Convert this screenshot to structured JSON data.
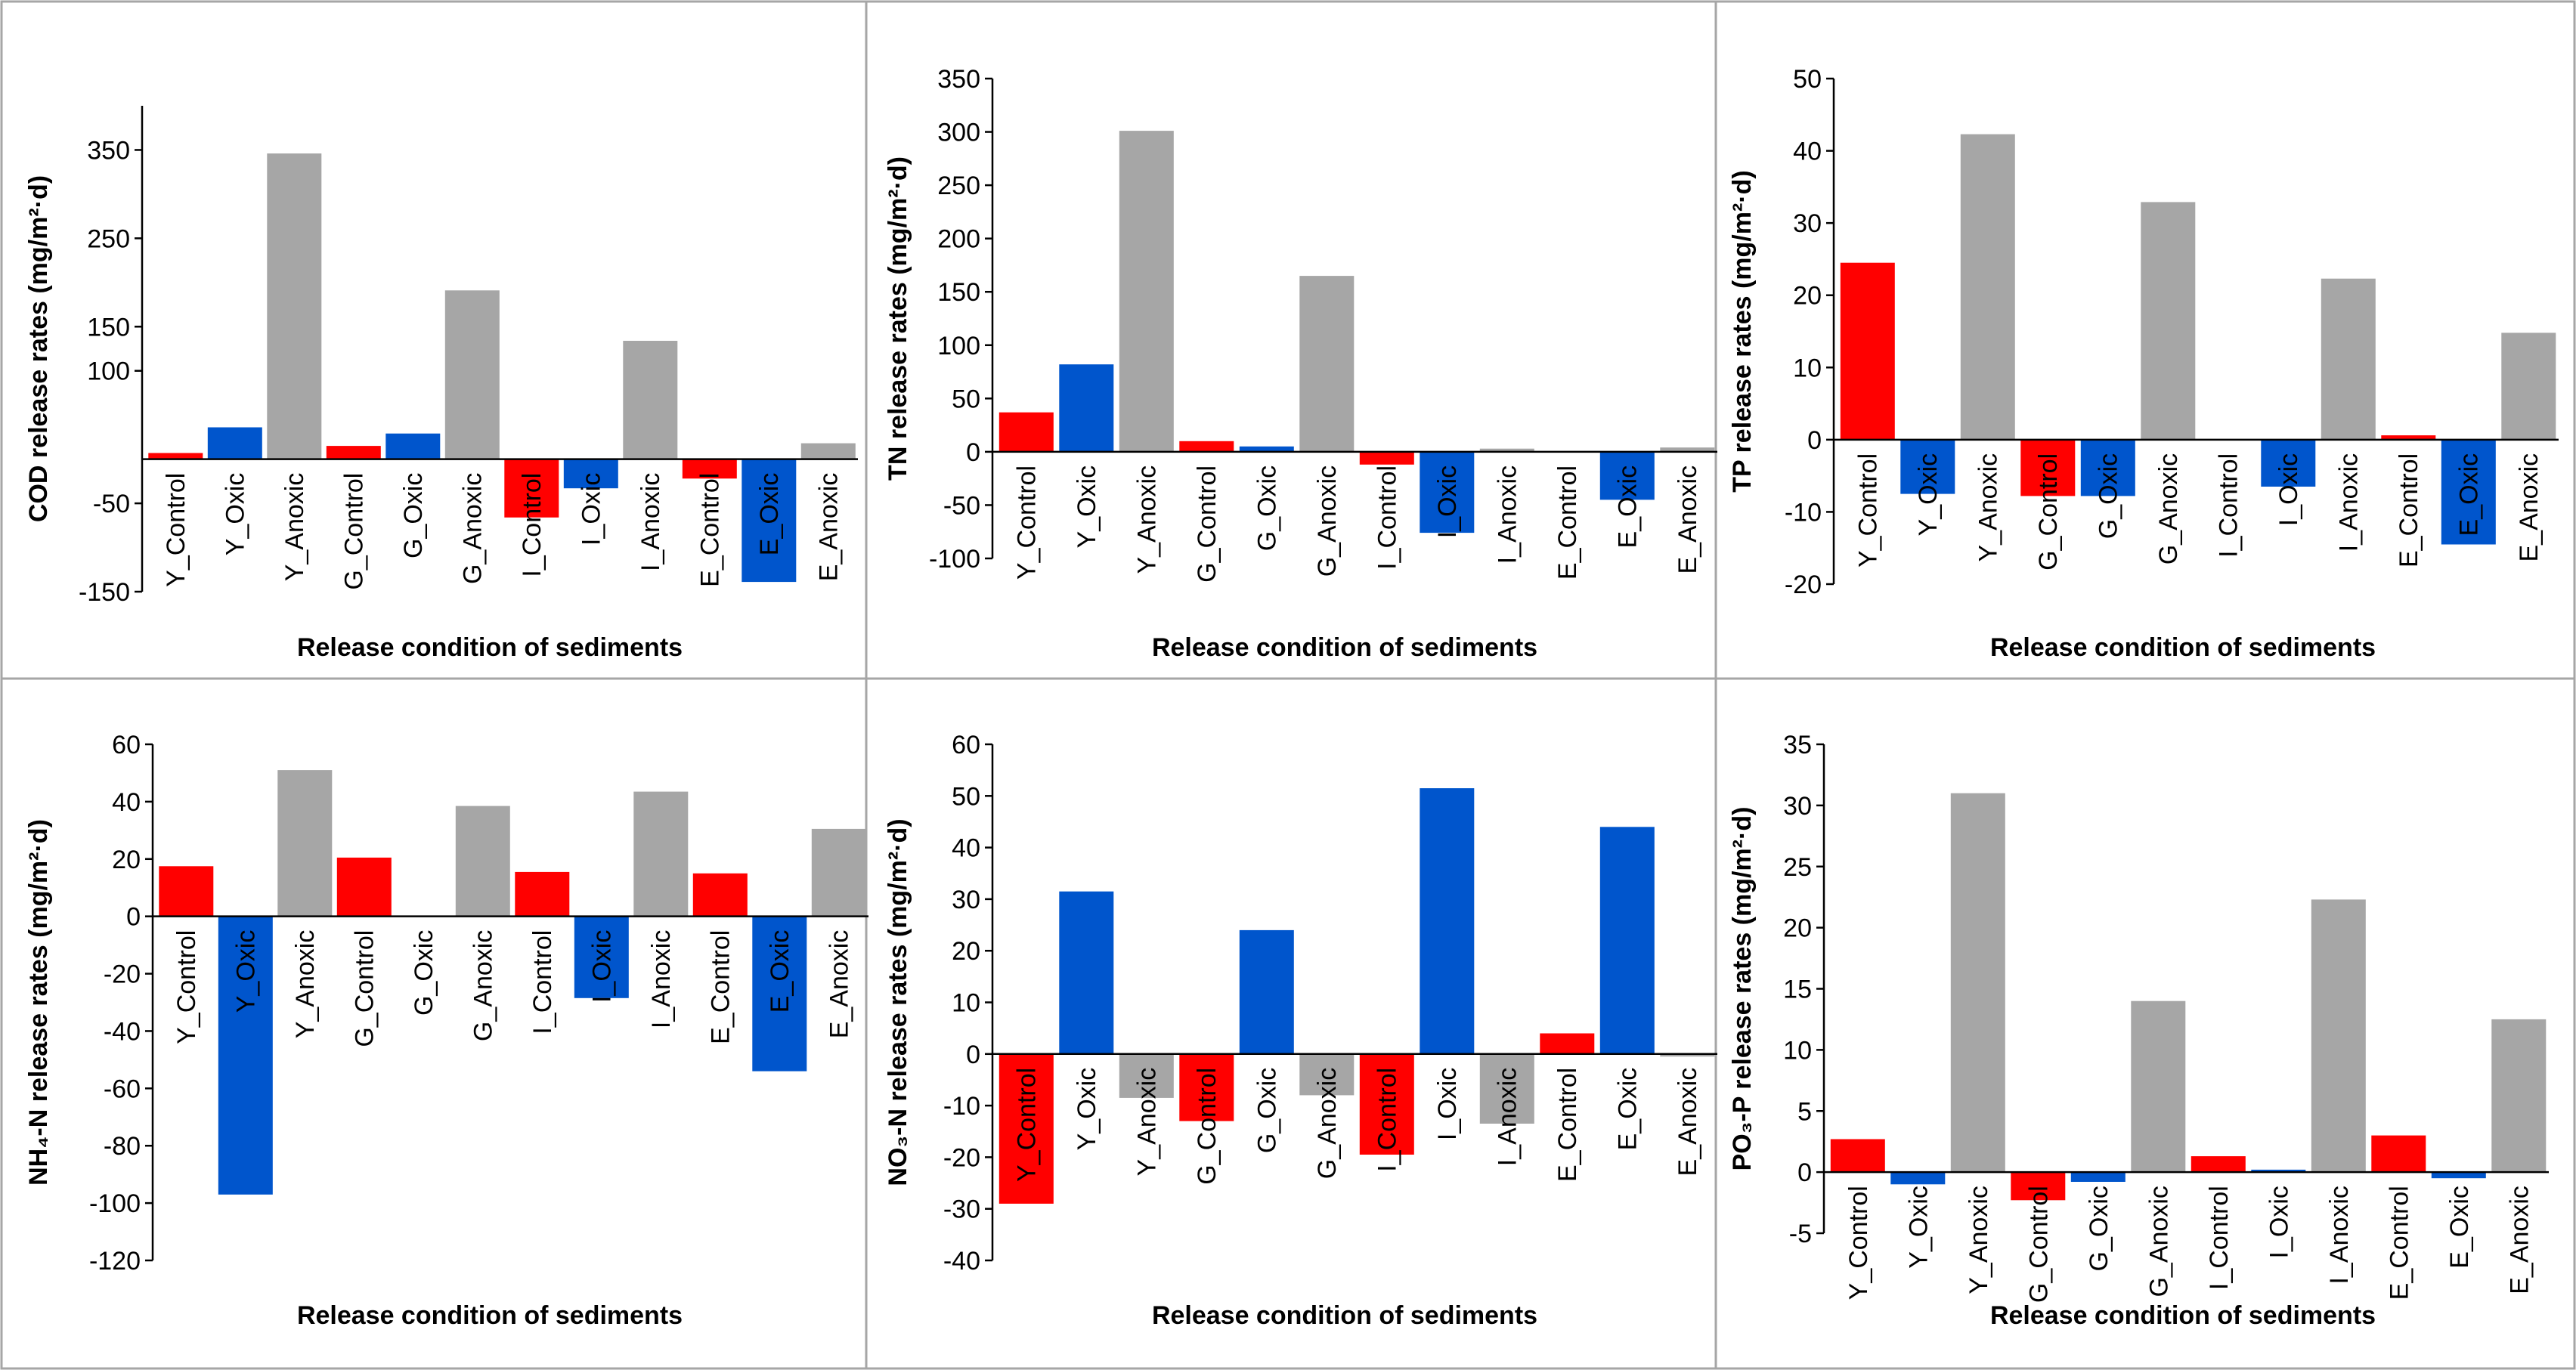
{
  "colors": {
    "Control": "#ff0000",
    "Oxic": "#0055cc",
    "Anoxic": "#a6a6a6",
    "panel_border": "#a6a6a6",
    "axis": "#000000"
  },
  "chart_data": [
    {
      "type": "bar",
      "ylabel": "COD release rates (mg/m²·d)",
      "xlabel": "Release condition of sediments",
      "categories": [
        "Y_Control",
        "Y_Oxic",
        "Y_Anoxic",
        "G_Control",
        "G_Oxic",
        "G_Anoxic",
        "I_Control",
        "I_Oxic",
        "I_Anoxic",
        "E_Control",
        "E_Oxic",
        "E_Anoxic"
      ],
      "values": [
        7,
        36,
        346,
        15,
        29,
        191,
        -66,
        -33,
        134,
        -22,
        -139,
        18
      ],
      "ylim": [
        -150,
        400
      ],
      "ticks": [
        -150,
        -50,
        100,
        150,
        250,
        350
      ],
      "legend": "none",
      "grid": false
    },
    {
      "type": "bar",
      "ylabel": "TN release rates (mg/m²·d)",
      "xlabel": "Release condition of sediments",
      "categories": [
        "Y_Control",
        "Y_Oxic",
        "Y_Anoxic",
        "G_Control",
        "G_Oxic",
        "G_Anoxic",
        "I_Control",
        "I_Oxic",
        "I_Anoxic",
        "E_Control",
        "E_Oxic",
        "E_Anoxic"
      ],
      "values": [
        37,
        82,
        301,
        10,
        5,
        165,
        -12,
        -76,
        3,
        0,
        -45,
        4
      ],
      "ylim": [
        -100,
        350
      ],
      "ticks": [
        -100,
        -50,
        0,
        50,
        100,
        150,
        200,
        250,
        300,
        350
      ],
      "legend": "none",
      "grid": false
    },
    {
      "type": "bar",
      "ylabel": "TP release rates (mg/m²·d)",
      "xlabel": "Release condition of sediments",
      "categories": [
        "Y_Control",
        "Y_Oxic",
        "Y_Anoxic",
        "G_Control",
        "G_Oxic",
        "G_Anoxic",
        "I_Control",
        "I_Oxic",
        "I_Anoxic",
        "E_Control",
        "E_Oxic",
        "E_Anoxic"
      ],
      "values": [
        24.5,
        -7.5,
        42.3,
        -7.8,
        -7.8,
        32.9,
        0,
        -6.5,
        22.3,
        0.6,
        -14.5,
        14.8
      ],
      "ylim": [
        -20,
        50
      ],
      "ticks": [
        -20,
        -10,
        0,
        10,
        20,
        30,
        40,
        50
      ],
      "legend": "none",
      "grid": false
    },
    {
      "type": "bar",
      "ylabel": "NH₄-N release rates (mg/m²·d)",
      "xlabel": "Release condition of sediments",
      "categories": [
        "Y_Control",
        "Y_Oxic",
        "Y_Anoxic",
        "G_Control",
        "G_Oxic",
        "G_Anoxic",
        "I_Control",
        "I_Oxic",
        "I_Anoxic",
        "E_Control",
        "E_Oxic",
        "E_Anoxic"
      ],
      "values": [
        17.5,
        -97,
        51,
        20.5,
        0,
        38.5,
        15.5,
        -28.5,
        43.5,
        15,
        -54,
        30.5
      ],
      "ylim": [
        -120,
        60
      ],
      "ticks": [
        -120,
        -100,
        -80,
        -60,
        -40,
        -20,
        0,
        20,
        40,
        60
      ],
      "legend": "none",
      "grid": false
    },
    {
      "type": "bar",
      "ylabel": "NO₃-N release rates (mg/m²·d)",
      "xlabel": "Release condition of sediments",
      "categories": [
        "Y_Control",
        "Y_Oxic",
        "Y_Anoxic",
        "G_Control",
        "G_Oxic",
        "G_Anoxic",
        "I_Control",
        "I_Oxic",
        "I_Anoxic",
        "E_Control",
        "E_Oxic",
        "E_Anoxic"
      ],
      "values": [
        -29,
        31.5,
        -8.5,
        -13,
        24,
        -8,
        -19.5,
        51.5,
        -13.5,
        4,
        44,
        -0.5
      ],
      "ylim": [
        -40,
        60
      ],
      "ticks": [
        -40,
        -30,
        -20,
        -10,
        0,
        10,
        20,
        30,
        40,
        50,
        60
      ],
      "legend": "none",
      "grid": false
    },
    {
      "type": "bar",
      "ylabel": "PO₃-P release rates (mg/m²·d)",
      "xlabel": "Release condition of sediments",
      "categories": [
        "Y_Control",
        "Y_Oxic",
        "Y_Anoxic",
        "G_Control",
        "G_Oxic",
        "G_Anoxic",
        "I_Control",
        "I_Oxic",
        "I_Anoxic",
        "E_Control",
        "E_Oxic",
        "E_Anoxic"
      ],
      "values": [
        2.7,
        -1,
        31,
        -2.3,
        -0.8,
        14,
        1.3,
        0.2,
        22.3,
        3,
        -0.5,
        12.5
      ],
      "ylim": [
        -5,
        35
      ],
      "ticks": [
        -5,
        0,
        5,
        10,
        15,
        20,
        25,
        30,
        35
      ],
      "legend": "none",
      "grid": false
    }
  ]
}
